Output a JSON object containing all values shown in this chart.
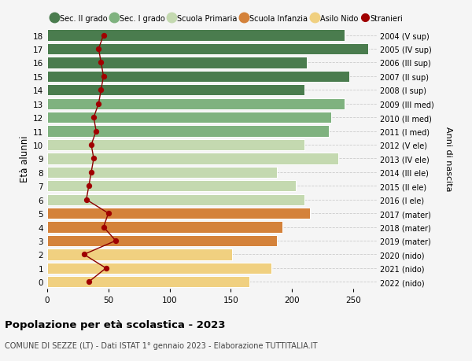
{
  "ages": [
    18,
    17,
    16,
    15,
    14,
    13,
    12,
    11,
    10,
    9,
    8,
    7,
    6,
    5,
    4,
    3,
    2,
    1,
    0
  ],
  "years": [
    "2004 (V sup)",
    "2005 (IV sup)",
    "2006 (III sup)",
    "2007 (II sup)",
    "2008 (I sup)",
    "2009 (III med)",
    "2010 (II med)",
    "2011 (I med)",
    "2012 (V ele)",
    "2013 (IV ele)",
    "2014 (III ele)",
    "2015 (II ele)",
    "2016 (I ele)",
    "2017 (mater)",
    "2018 (mater)",
    "2019 (mater)",
    "2020 (nido)",
    "2021 (nido)",
    "2022 (nido)"
  ],
  "values": [
    243,
    262,
    212,
    247,
    210,
    243,
    232,
    230,
    210,
    238,
    188,
    203,
    210,
    215,
    192,
    188,
    151,
    183,
    165
  ],
  "stranieri": [
    46,
    42,
    44,
    46,
    44,
    42,
    38,
    40,
    36,
    38,
    36,
    34,
    32,
    50,
    46,
    56,
    30,
    48,
    34
  ],
  "colors": [
    "#4a7c4e",
    "#4a7c4e",
    "#4a7c4e",
    "#4a7c4e",
    "#4a7c4e",
    "#7fb27f",
    "#7fb27f",
    "#7fb27f",
    "#c4d9b0",
    "#c4d9b0",
    "#c4d9b0",
    "#c4d9b0",
    "#c4d9b0",
    "#d4823a",
    "#d4823a",
    "#d4823a",
    "#f0d080",
    "#f0d080",
    "#f0d080"
  ],
  "legend_labels": [
    "Sec. II grado",
    "Sec. I grado",
    "Scuola Primaria",
    "Scuola Infanzia",
    "Asilo Nido",
    "Stranieri"
  ],
  "legend_colors": [
    "#4a7c4e",
    "#7fb27f",
    "#c4d9b0",
    "#d4823a",
    "#f0d080",
    "#a00000"
  ],
  "ylabel": "Età alunni",
  "right_label": "Anni di nascita",
  "title": "Popolazione per età scolastica - 2023",
  "subtitle": "COMUNE DI SEZZE (LT) - Dati ISTAT 1° gennaio 2023 - Elaborazione TUTTITALIA.IT",
  "xlim": [
    0,
    270
  ],
  "ylim": [
    -0.5,
    18.5
  ],
  "bg_color": "#f5f5f5",
  "grid_color": "#cccccc",
  "stranieri_color": "#a00000",
  "stranieri_line_color": "#8b0000"
}
